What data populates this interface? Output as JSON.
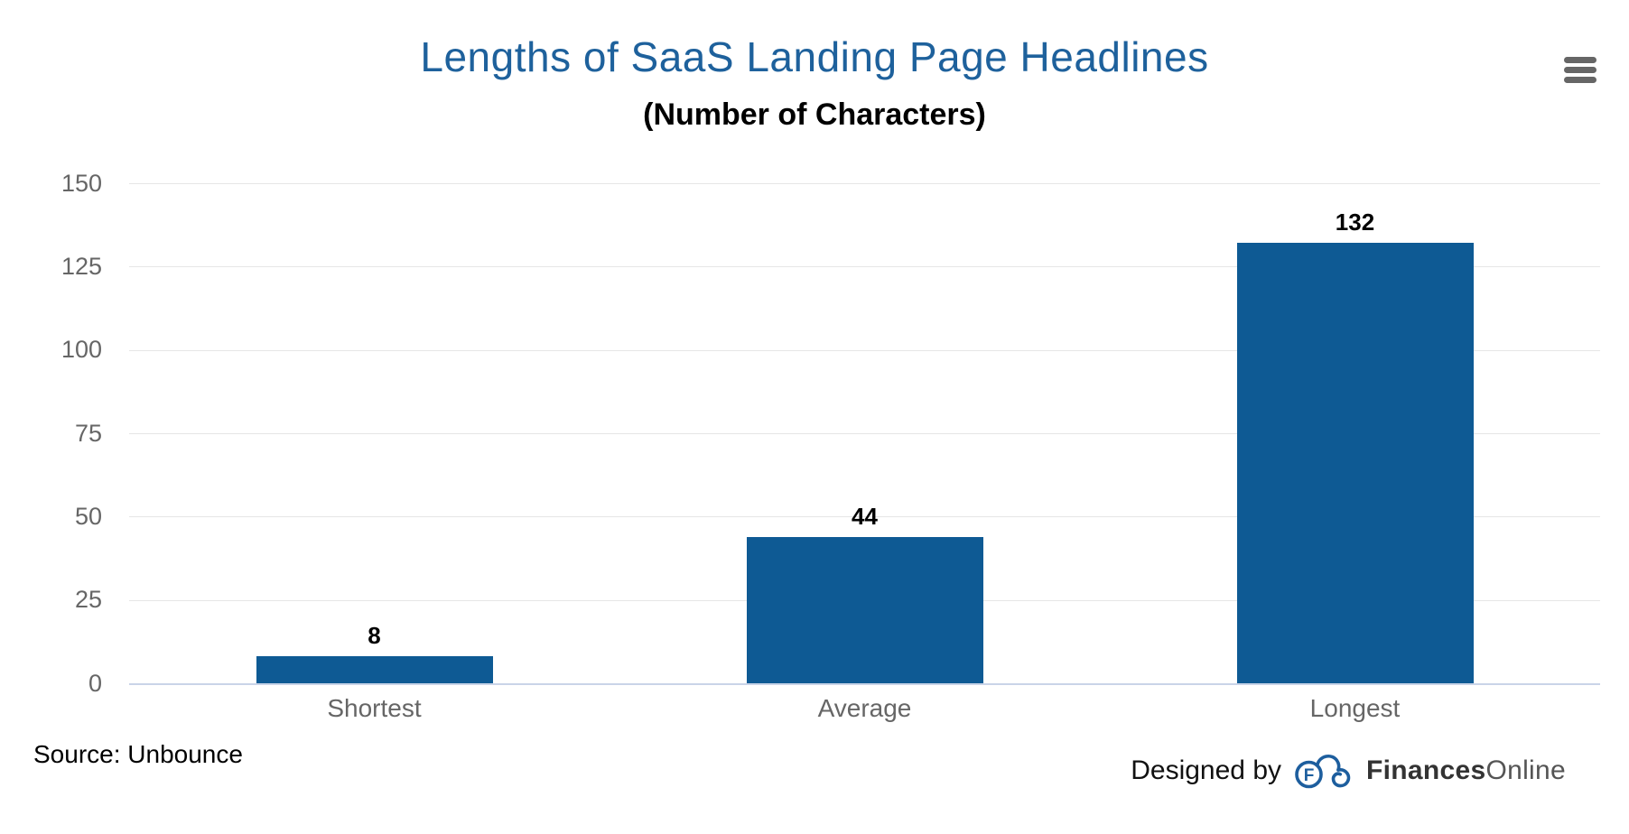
{
  "chart": {
    "title": "Lengths of SaaS Landing Page Headlines",
    "subtitle": "(Number of Characters)",
    "title_color": "#1e619c",
    "bar_color": "#0e5a94",
    "axis_label_color": "#666666",
    "gridline_color": "#e6e6e6",
    "axis_line_color": "#c9d4e8",
    "context_menu_icon": "hamburger-icon"
  },
  "chart_data": {
    "type": "bar",
    "categories": [
      "Shortest",
      "Average",
      "Longest"
    ],
    "values": [
      8,
      44,
      132
    ],
    "data_labels": [
      "8",
      "44",
      "132"
    ],
    "title": "Lengths of SaaS Landing Page Headlines",
    "subtitle": "(Number of Characters)",
    "xlabel": "",
    "ylabel": "",
    "ylim": [
      0,
      150
    ],
    "yticks": [
      0,
      25,
      50,
      75,
      100,
      125,
      150
    ],
    "grid": "horizontal",
    "legend": "none",
    "bar_color": "#0e5a94"
  },
  "footer": {
    "source": "Source: Unbounce",
    "designed_by": "Designed by",
    "brand_bold": "Finances",
    "brand_light": "Online",
    "logo": "financesonline-cloud-logo"
  }
}
